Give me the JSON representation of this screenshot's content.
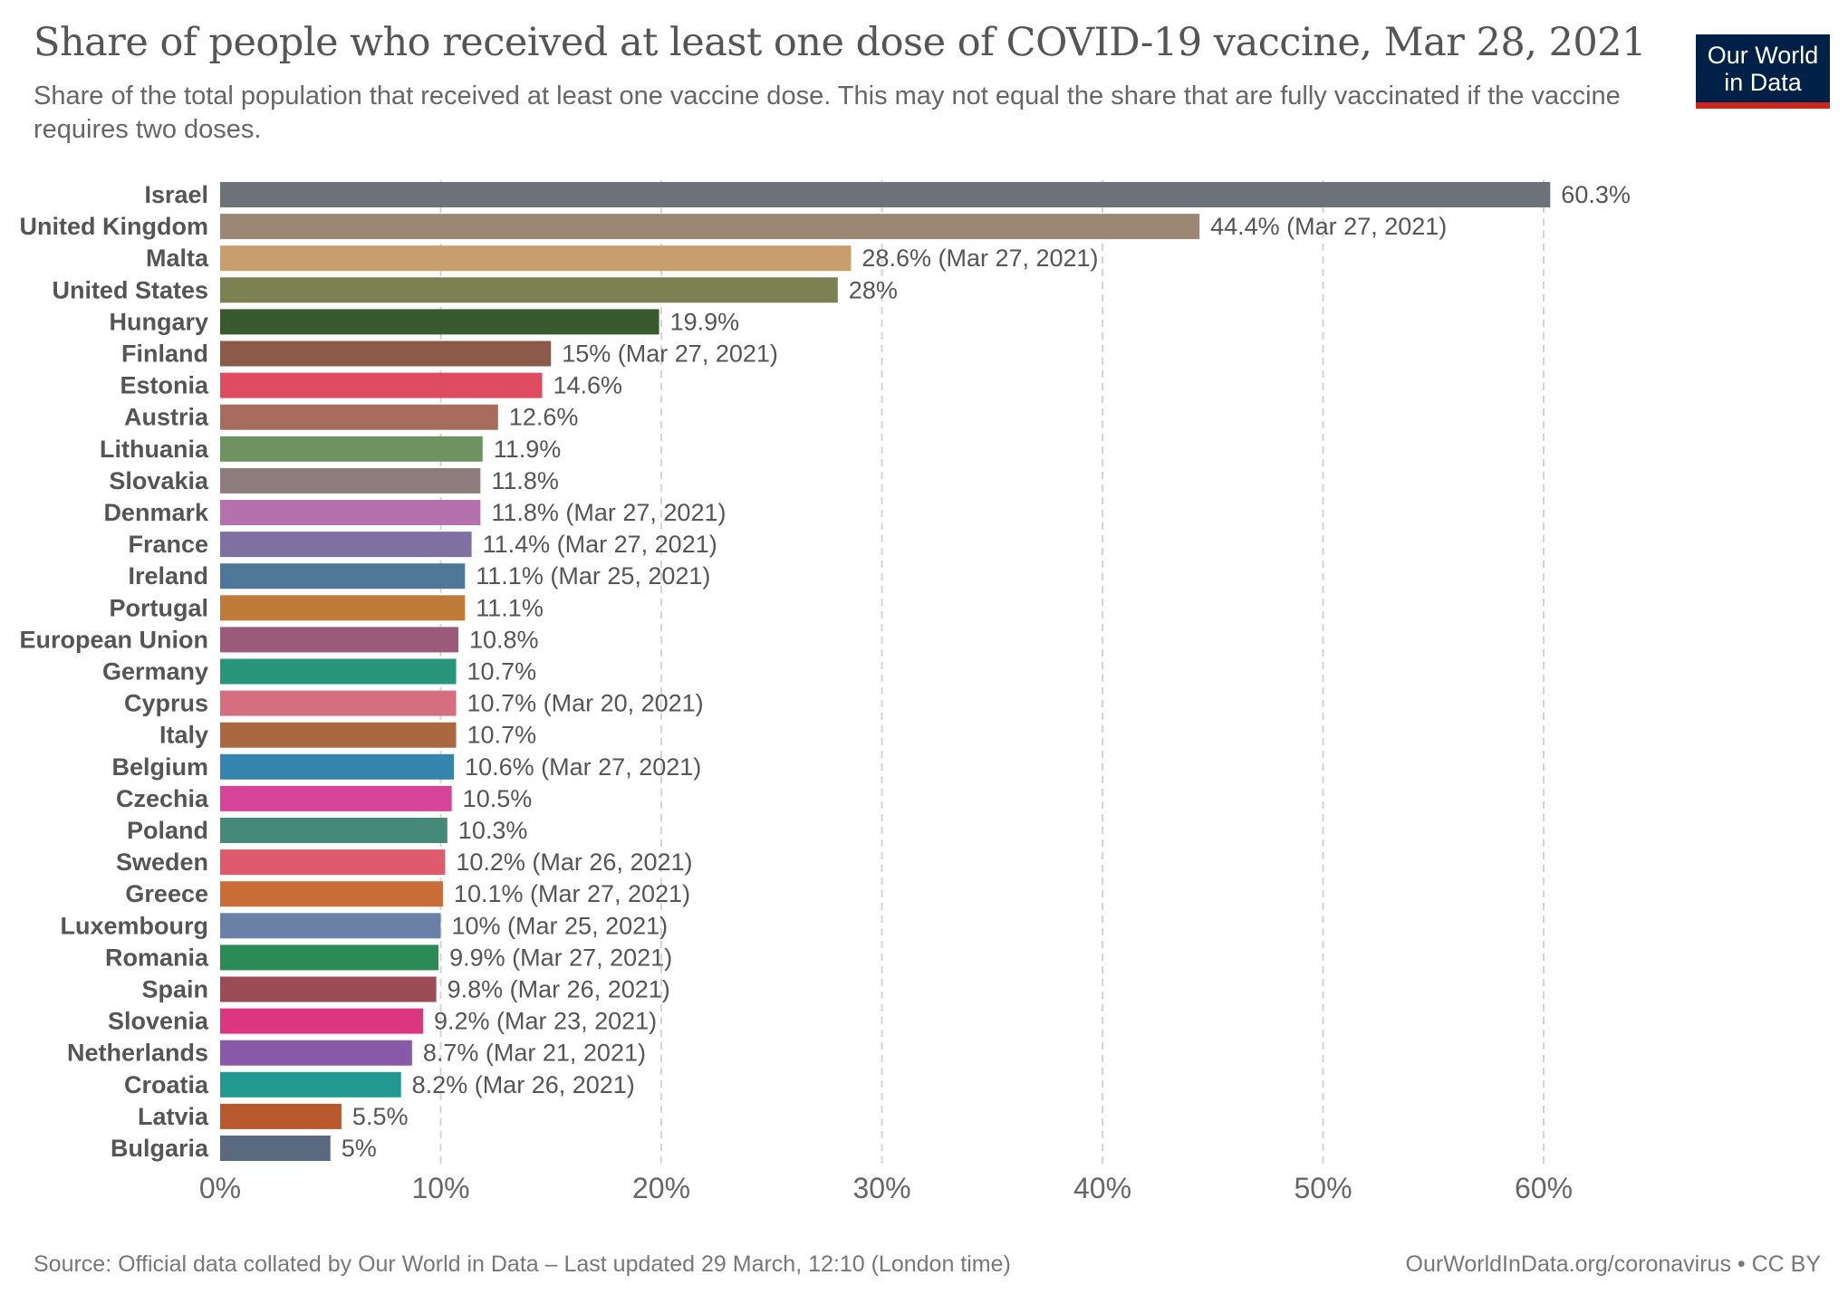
{
  "header": {
    "title": "Share of people who received at least one dose of COVID-19 vaccine, Mar 28, 2021",
    "subtitle": "Share of the total population that received at least one vaccine dose. This may not equal the share that are fully vaccinated if the vaccine requires two doses."
  },
  "logo": {
    "text": "Our World\nin Data",
    "background": "#002147",
    "accent": "#ce261e"
  },
  "footer": {
    "source": "Source: Official data collated by Our World in Data – Last updated 29 March, 12:10 (London time)",
    "credit": "OurWorldInData.org/coronavirus • CC BY"
  },
  "chart_data": {
    "type": "bar",
    "orientation": "horizontal",
    "title": "Share of people who received at least one dose of COVID-19 vaccine, Mar 28, 2021",
    "xlabel": "",
    "ylabel": "",
    "xlim": [
      0,
      60
    ],
    "xticks": [
      0,
      10,
      20,
      30,
      40,
      50,
      60
    ],
    "xtick_labels": [
      "0%",
      "10%",
      "20%",
      "30%",
      "40%",
      "50%",
      "60%"
    ],
    "grid": true,
    "categories": [
      "Israel",
      "United Kingdom",
      "Malta",
      "United States",
      "Hungary",
      "Finland",
      "Estonia",
      "Austria",
      "Lithuania",
      "Slovakia",
      "Denmark",
      "France",
      "Ireland",
      "Portugal",
      "European Union",
      "Germany",
      "Cyprus",
      "Italy",
      "Belgium",
      "Czechia",
      "Poland",
      "Sweden",
      "Greece",
      "Luxembourg",
      "Romania",
      "Spain",
      "Slovenia",
      "Netherlands",
      "Croatia",
      "Latvia",
      "Bulgaria"
    ],
    "values": [
      60.3,
      44.4,
      28.6,
      28,
      19.9,
      15,
      14.6,
      12.6,
      11.9,
      11.8,
      11.8,
      11.4,
      11.1,
      11.1,
      10.8,
      10.7,
      10.7,
      10.7,
      10.6,
      10.5,
      10.3,
      10.2,
      10.1,
      10,
      9.9,
      9.8,
      9.2,
      8.7,
      8.2,
      5.5,
      5
    ],
    "value_labels": [
      "60.3%",
      "44.4% (Mar 27, 2021)",
      "28.6% (Mar 27, 2021)",
      "28%",
      "19.9%",
      "15% (Mar 27, 2021)",
      "14.6%",
      "12.6%",
      "11.9%",
      "11.8%",
      "11.8% (Mar 27, 2021)",
      "11.4% (Mar 27, 2021)",
      "11.1% (Mar 25, 2021)",
      "11.1%",
      "10.8%",
      "10.7%",
      "10.7% (Mar 20, 2021)",
      "10.7%",
      "10.6% (Mar 27, 2021)",
      "10.5%",
      "10.3%",
      "10.2% (Mar 26, 2021)",
      "10.1% (Mar 27, 2021)",
      "10% (Mar 25, 2021)",
      "9.9% (Mar 27, 2021)",
      "9.8% (Mar 26, 2021)",
      "9.2% (Mar 23, 2021)",
      "8.7% (Mar 21, 2021)",
      "8.2% (Mar 26, 2021)",
      "5.5%",
      "5%"
    ],
    "colors": [
      "#6d727a",
      "#9b8773",
      "#c99e6d",
      "#7b8150",
      "#39592f",
      "#8c5a48",
      "#df4b60",
      "#a86c5f",
      "#6e9260",
      "#8e7c7f",
      "#b571ad",
      "#7e71a2",
      "#4f7898",
      "#be7a37",
      "#9c5a7a",
      "#27967a",
      "#d56f7f",
      "#a9683f",
      "#3485ad",
      "#d64599",
      "#458a78",
      "#de5a6c",
      "#ca6c36",
      "#6a80a7",
      "#2b8b55",
      "#9b4c57",
      "#dd3680",
      "#8859a6",
      "#229990",
      "#b85a2d",
      "#596a7e"
    ]
  }
}
